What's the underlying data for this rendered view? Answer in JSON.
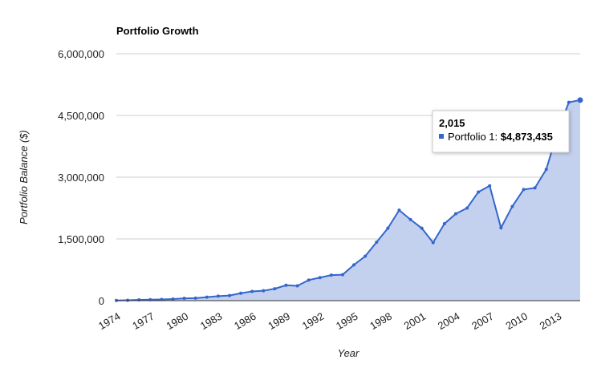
{
  "chart_data": {
    "type": "area",
    "title": "Portfolio Growth",
    "xlabel": "Year",
    "ylabel": "Portfolio Balance ($)",
    "ylim": [
      0,
      6000000
    ],
    "yticks": [
      0,
      1500000,
      3000000,
      4500000,
      6000000
    ],
    "ytick_labels": [
      "0",
      "1,500,000",
      "3,000,000",
      "4,500,000",
      "6,000,000"
    ],
    "xlim": [
      1974,
      2015
    ],
    "xticks": [
      1974,
      1977,
      1980,
      1983,
      1986,
      1989,
      1992,
      1995,
      1998,
      2001,
      2004,
      2007,
      2010,
      2013
    ],
    "grid": true,
    "colors": {
      "line": "#3366cc",
      "fill": "#c3d1ef"
    },
    "series": [
      {
        "name": "Portfolio 1",
        "x": [
          1974,
          1975,
          1976,
          1977,
          1978,
          1979,
          1980,
          1981,
          1982,
          1983,
          1984,
          1985,
          1986,
          1987,
          1988,
          1989,
          1990,
          1991,
          1992,
          1993,
          1994,
          1995,
          1996,
          1997,
          1998,
          1999,
          2000,
          2001,
          2002,
          2003,
          2004,
          2005,
          2006,
          2007,
          2008,
          2009,
          2010,
          2011,
          2012,
          2013,
          2014,
          2015
        ],
        "y": [
          5000,
          10000,
          20000,
          25000,
          30000,
          40000,
          55000,
          60000,
          85000,
          110000,
          125000,
          180000,
          225000,
          240000,
          290000,
          375000,
          360000,
          500000,
          560000,
          620000,
          630000,
          870000,
          1080000,
          1420000,
          1760000,
          2200000,
          1970000,
          1760000,
          1410000,
          1870000,
          2110000,
          2250000,
          2640000,
          2790000,
          1770000,
          2290000,
          2700000,
          2740000,
          3190000,
          4100000,
          4820000,
          4873435
        ]
      }
    ],
    "tooltip": {
      "year": "2,015",
      "series_label": "Portfolio 1: ",
      "value": "$4,873,435"
    }
  }
}
